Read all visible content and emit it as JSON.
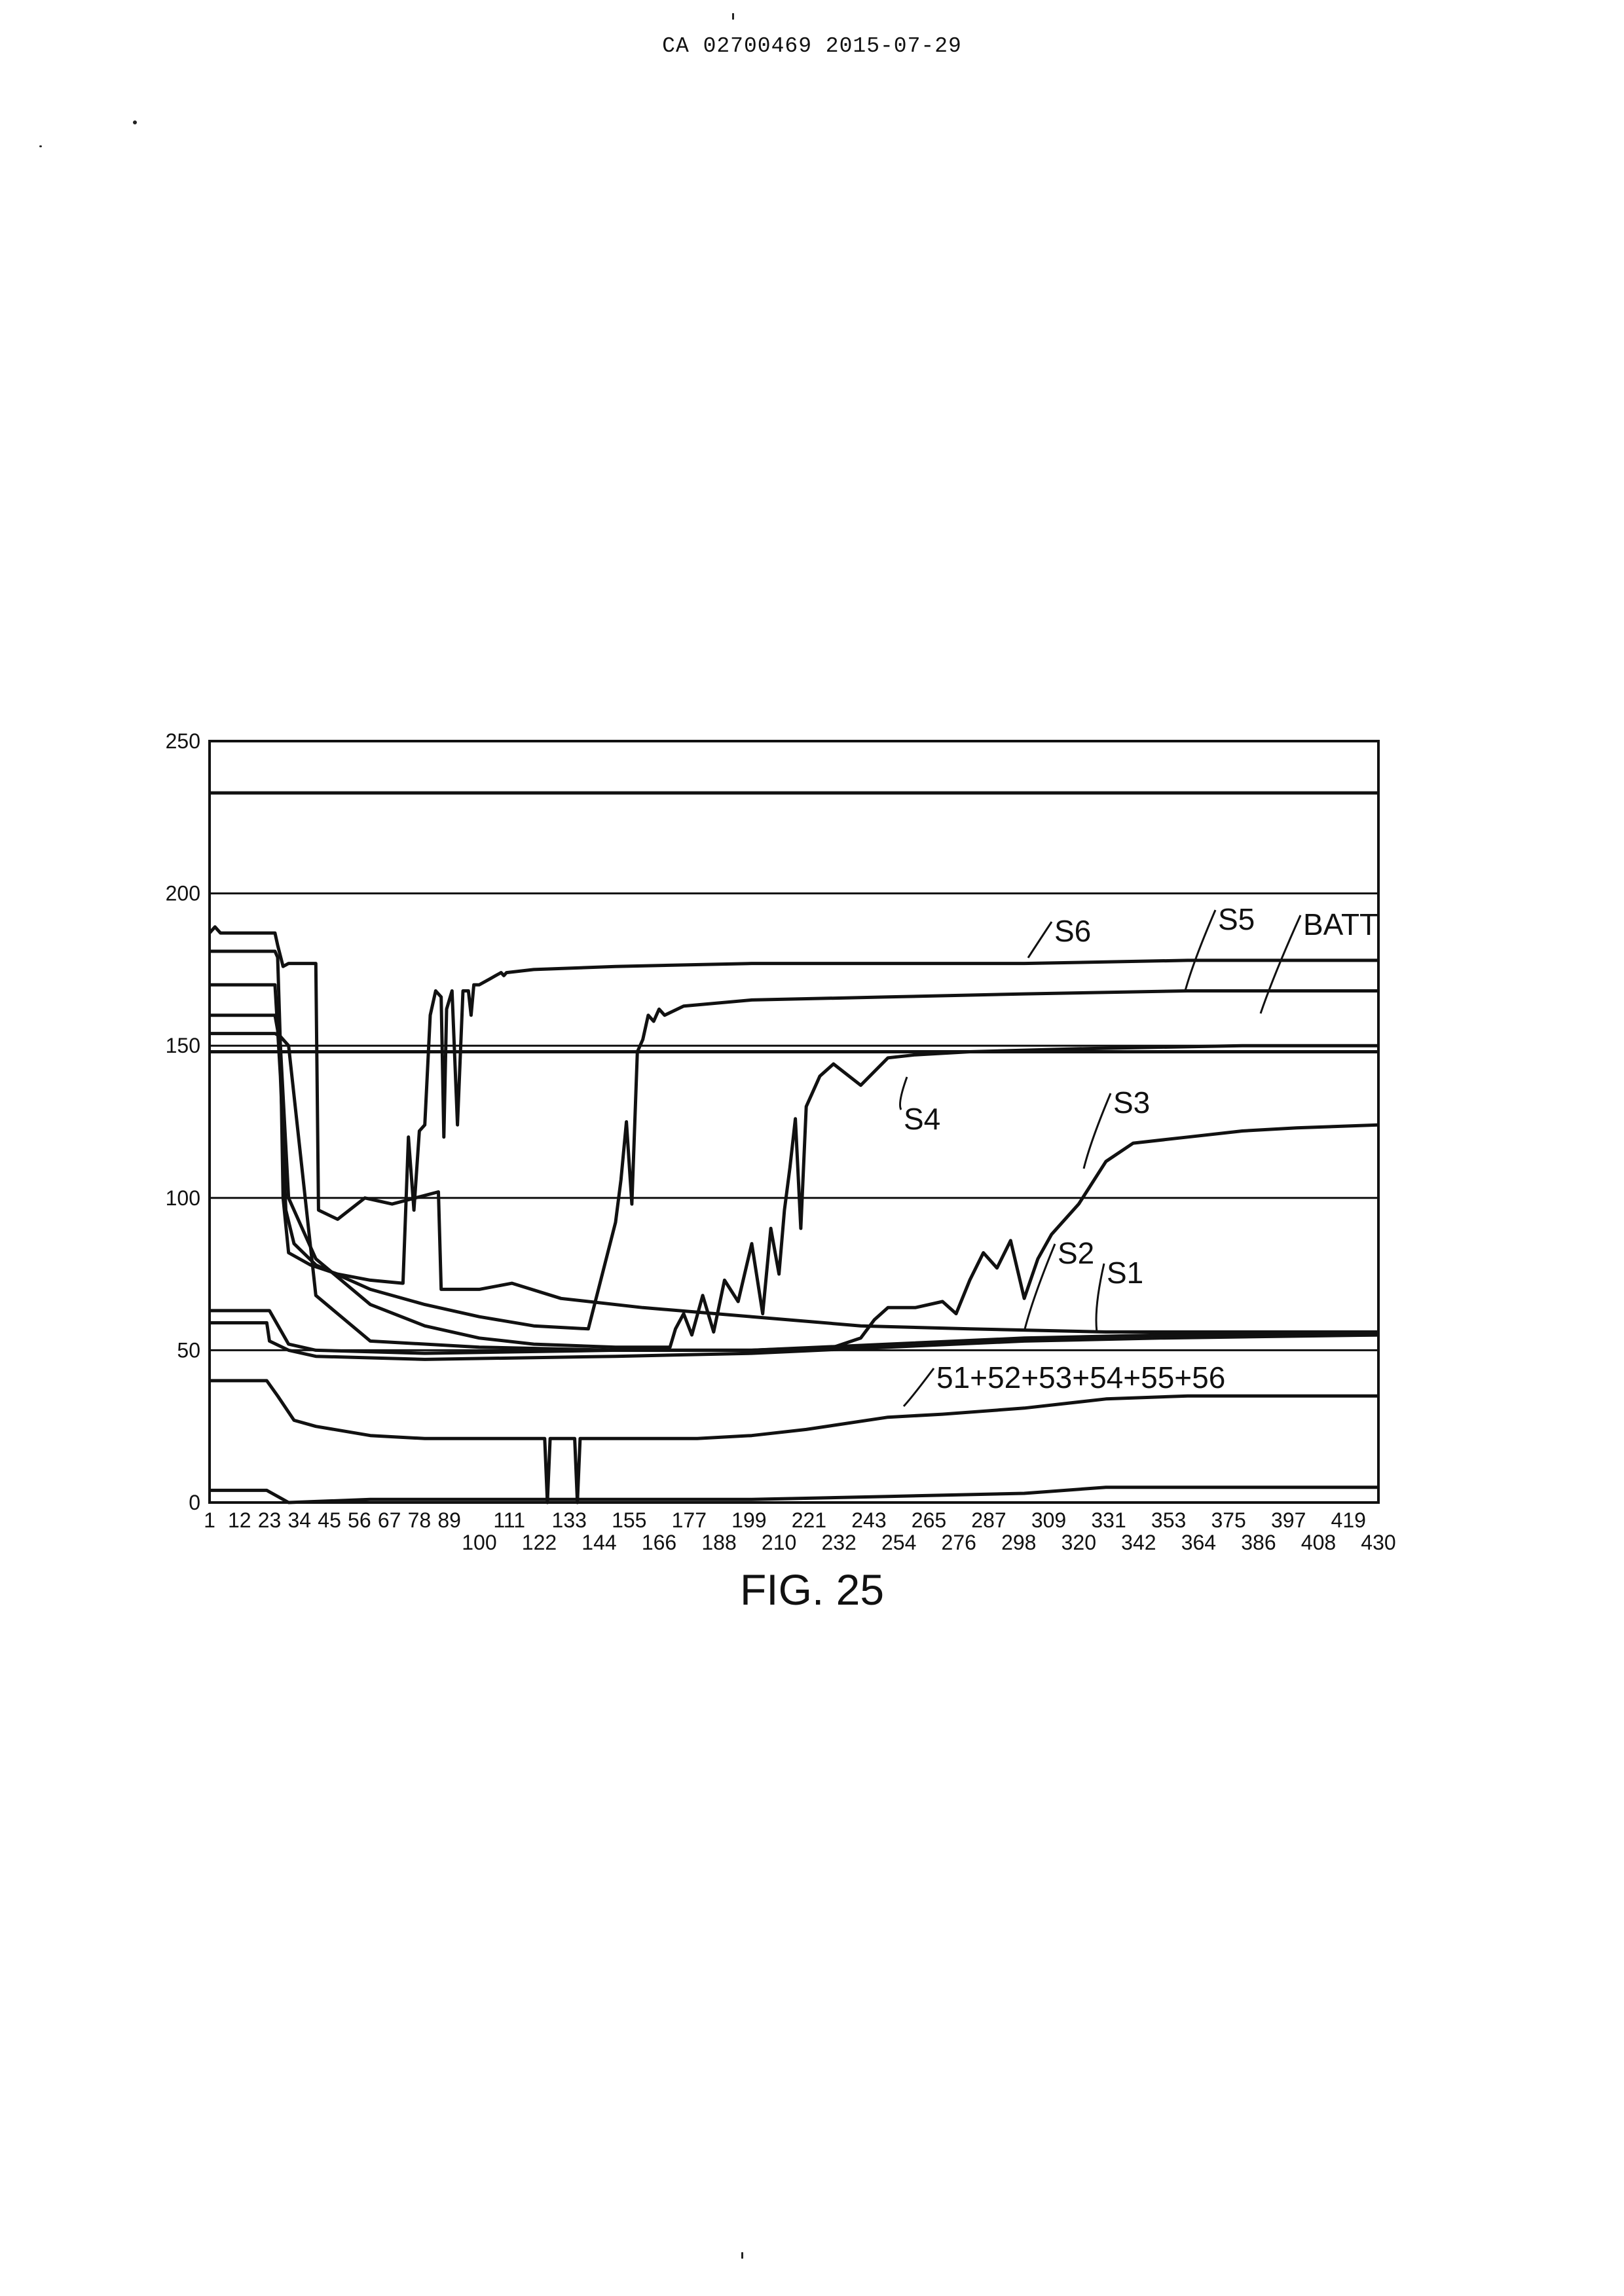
{
  "header": {
    "text": "CA 02700469 2015-07-29"
  },
  "caption": {
    "text": "FIG. 25"
  },
  "chart_data": {
    "type": "line",
    "title": "",
    "xlabel": "",
    "ylabel": "",
    "xlim": [
      1,
      430
    ],
    "ylim": [
      0,
      250
    ],
    "grid": "horizontal",
    "y_ticks": [
      0,
      50,
      100,
      150,
      200,
      250
    ],
    "x_ticks_top_row": [
      1,
      12,
      23,
      34,
      45,
      56,
      67,
      78,
      89,
      111,
      133,
      155,
      177,
      199,
      221,
      243,
      265,
      287,
      309,
      331,
      353,
      375,
      397,
      419
    ],
    "x_ticks_bottom_row": [
      100,
      122,
      144,
      166,
      188,
      210,
      232,
      254,
      276,
      298,
      320,
      342,
      364,
      386,
      408,
      430
    ],
    "series": [
      {
        "name": "S6",
        "x": [
          1,
          3,
          5,
          8,
          25,
          26,
          28,
          30,
          40,
          41,
          48,
          58,
          68,
          85,
          86,
          100,
          112,
          130,
          160,
          200,
          240,
          280,
          330,
          380,
          430
        ],
        "y": [
          187,
          189,
          187,
          187,
          187,
          183,
          176,
          177,
          177,
          96,
          93,
          100,
          98,
          102,
          70,
          70,
          72,
          67,
          64,
          61,
          58,
          57,
          56,
          56,
          56
        ]
      },
      {
        "name": "S5",
        "x": [
          1,
          25,
          26,
          27,
          28,
          30,
          38,
          48,
          60,
          72,
          74,
          76,
          78,
          80,
          82,
          84,
          86,
          87,
          88,
          90,
          92,
          94,
          96,
          97,
          98,
          100,
          104,
          106,
          108,
          109,
          110,
          120,
          150,
          200,
          250,
          300,
          360,
          430
        ],
        "y": [
          181,
          181,
          179,
          150,
          100,
          82,
          78,
          75,
          73,
          72,
          120,
          96,
          122,
          124,
          160,
          168,
          166,
          120,
          162,
          168,
          124,
          168,
          168,
          160,
          170,
          170,
          172,
          173,
          174,
          173,
          174,
          175,
          176,
          177,
          177,
          177,
          178,
          178
        ]
      },
      {
        "name": "BATT",
        "x": [
          1,
          25,
          27,
          29,
          32,
          40,
          60,
          80,
          100,
          120,
          140,
          150,
          152,
          154,
          156,
          158,
          160,
          162,
          164,
          166,
          168,
          175,
          200,
          250,
          300,
          360,
          430
        ],
        "y": [
          170,
          170,
          140,
          96,
          85,
          78,
          70,
          65,
          61,
          58,
          57,
          92,
          106,
          125,
          98,
          148,
          152,
          160,
          158,
          162,
          160,
          163,
          165,
          166,
          167,
          168,
          168
        ]
      },
      {
        "name": "S4",
        "x": [
          1,
          25,
          27,
          30,
          40,
          60,
          80,
          100,
          120,
          150,
          170,
          172,
          175,
          178,
          182,
          186,
          190,
          195,
          200,
          204,
          207,
          210,
          212,
          214,
          216,
          218,
          220,
          225,
          230,
          240,
          250,
          260,
          280,
          320,
          380,
          430
        ],
        "y": [
          160,
          160,
          150,
          100,
          80,
          65,
          58,
          54,
          52,
          51,
          51,
          57,
          62,
          55,
          68,
          56,
          73,
          66,
          85,
          62,
          90,
          75,
          96,
          110,
          126,
          90,
          130,
          140,
          144,
          137,
          146,
          147,
          148,
          149,
          150,
          150
        ]
      },
      {
        "name": "S3",
        "x": [
          1,
          25,
          27,
          30,
          40,
          60,
          100,
          150,
          200,
          230,
          240,
          245,
          250,
          260,
          270,
          275,
          280,
          285,
          290,
          295,
          300,
          305,
          310,
          320,
          330,
          340,
          360,
          380,
          400,
          430
        ],
        "y": [
          154,
          154,
          153,
          150,
          68,
          53,
          51,
          50,
          50,
          51,
          54,
          60,
          64,
          64,
          66,
          62,
          73,
          82,
          77,
          86,
          67,
          80,
          88,
          98,
          112,
          118,
          120,
          122,
          123,
          124
        ]
      },
      {
        "name": "S2",
        "x": [
          1,
          22,
          23,
          30,
          40,
          80,
          150,
          200,
          250,
          300,
          350,
          430
        ],
        "y": [
          63,
          63,
          63,
          52,
          50,
          49,
          50,
          50,
          52,
          54,
          55,
          55
        ]
      },
      {
        "name": "S1",
        "x": [
          1,
          22,
          23,
          30,
          40,
          80,
          150,
          200,
          250,
          300,
          350,
          430
        ],
        "y": [
          59,
          59,
          53,
          50,
          48,
          47,
          48,
          49,
          51,
          53,
          54,
          55
        ]
      },
      {
        "name": "51+52+53+54+55+56",
        "x": [
          1,
          22,
          26,
          32,
          40,
          60,
          80,
          100,
          124,
          125,
          126,
          127,
          135,
          136,
          137,
          138,
          150,
          180,
          200,
          220,
          250,
          270,
          300,
          330,
          360,
          430
        ],
        "y": [
          40,
          40,
          35,
          27,
          25,
          22,
          21,
          21,
          21,
          0,
          21,
          21,
          21,
          0,
          21,
          21,
          21,
          21,
          22,
          24,
          28,
          29,
          31,
          34,
          35,
          35
        ]
      },
      {
        "name": "",
        "x": [
          1,
          22,
          30,
          60,
          100,
          150,
          200,
          250,
          300,
          330,
          380,
          430
        ],
        "y": [
          4,
          4,
          0,
          1,
          1,
          1,
          1,
          2,
          3,
          5,
          5,
          5
        ]
      },
      {
        "name": "",
        "x": [
          1,
          430
        ],
        "y": [
          233,
          233
        ]
      },
      {
        "name": "",
        "x": [
          1,
          430
        ],
        "y": [
          148,
          148
        ]
      }
    ],
    "annotations": [
      {
        "text": "S6",
        "series": "S6"
      },
      {
        "text": "S5",
        "series": "S5"
      },
      {
        "text": "BATT",
        "series": "BATT"
      },
      {
        "text": "S4",
        "series": "S4"
      },
      {
        "text": "S3",
        "series": "S3"
      },
      {
        "text": "S2",
        "series": "S2"
      },
      {
        "text": "S1",
        "series": "S1"
      },
      {
        "text": "51+52+53+54+55+56",
        "series": "51+52+53+54+55+56"
      }
    ]
  }
}
